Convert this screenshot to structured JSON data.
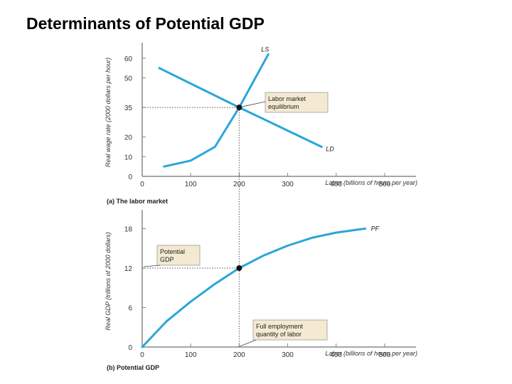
{
  "page_title": "Determinants of Potential GDP",
  "colors": {
    "curve": "#2aa6d8",
    "axis": "#888888",
    "annotation_fill": "#f4ead2",
    "text": "#222222"
  },
  "chart_data": [
    {
      "type": "line",
      "caption": "(a) The labor market",
      "xlabel": "Labor (billions of hours per year)",
      "ylabel": "Real wage rate (2000 dollars per hour)",
      "xlim": [
        0,
        550
      ],
      "ylim": [
        0,
        65
      ],
      "x_ticks": [
        "0",
        "100",
        "200",
        "300",
        "400",
        "500"
      ],
      "y_ticks": [
        "10",
        "20",
        "35",
        "50",
        "60"
      ],
      "series": [
        {
          "name": "LS",
          "points": [
            [
              45,
              5
            ],
            [
              100,
              8
            ],
            [
              150,
              15
            ],
            [
              200,
              35
            ],
            [
              260,
              62
            ]
          ]
        },
        {
          "name": "LD",
          "points": [
            [
              35,
              55
            ],
            [
              200,
              35
            ],
            [
              370,
              15
            ]
          ]
        }
      ],
      "equilibrium": {
        "x": 200,
        "y": 35
      },
      "annotation": [
        "Labor market",
        "equilibrium"
      ]
    },
    {
      "type": "line",
      "caption": "(b) Potential GDP",
      "xlabel": "Labor (billions of hours per year)",
      "ylabel": "Real GDP (trillions of 2000 dollars)",
      "xlim": [
        0,
        550
      ],
      "ylim": [
        0,
        20
      ],
      "x_ticks": [
        "0",
        "100",
        "200",
        "300",
        "400",
        "500"
      ],
      "y_ticks": [
        "6",
        "12",
        "18"
      ],
      "series": [
        {
          "name": "PF",
          "points": [
            [
              0,
              0
            ],
            [
              50,
              3.9
            ],
            [
              100,
              6.9
            ],
            [
              150,
              9.6
            ],
            [
              200,
              12
            ],
            [
              250,
              13.9
            ],
            [
              300,
              15.4
            ],
            [
              350,
              16.6
            ],
            [
              400,
              17.4
            ],
            [
              450,
              17.9
            ],
            [
              460,
              18
            ]
          ]
        }
      ],
      "equilibrium": {
        "x": 200,
        "y": 12
      },
      "annotation_gdp": [
        "Potential",
        "GDP"
      ],
      "annotation_labor": [
        "Full employment",
        "quantity of labor"
      ]
    }
  ]
}
